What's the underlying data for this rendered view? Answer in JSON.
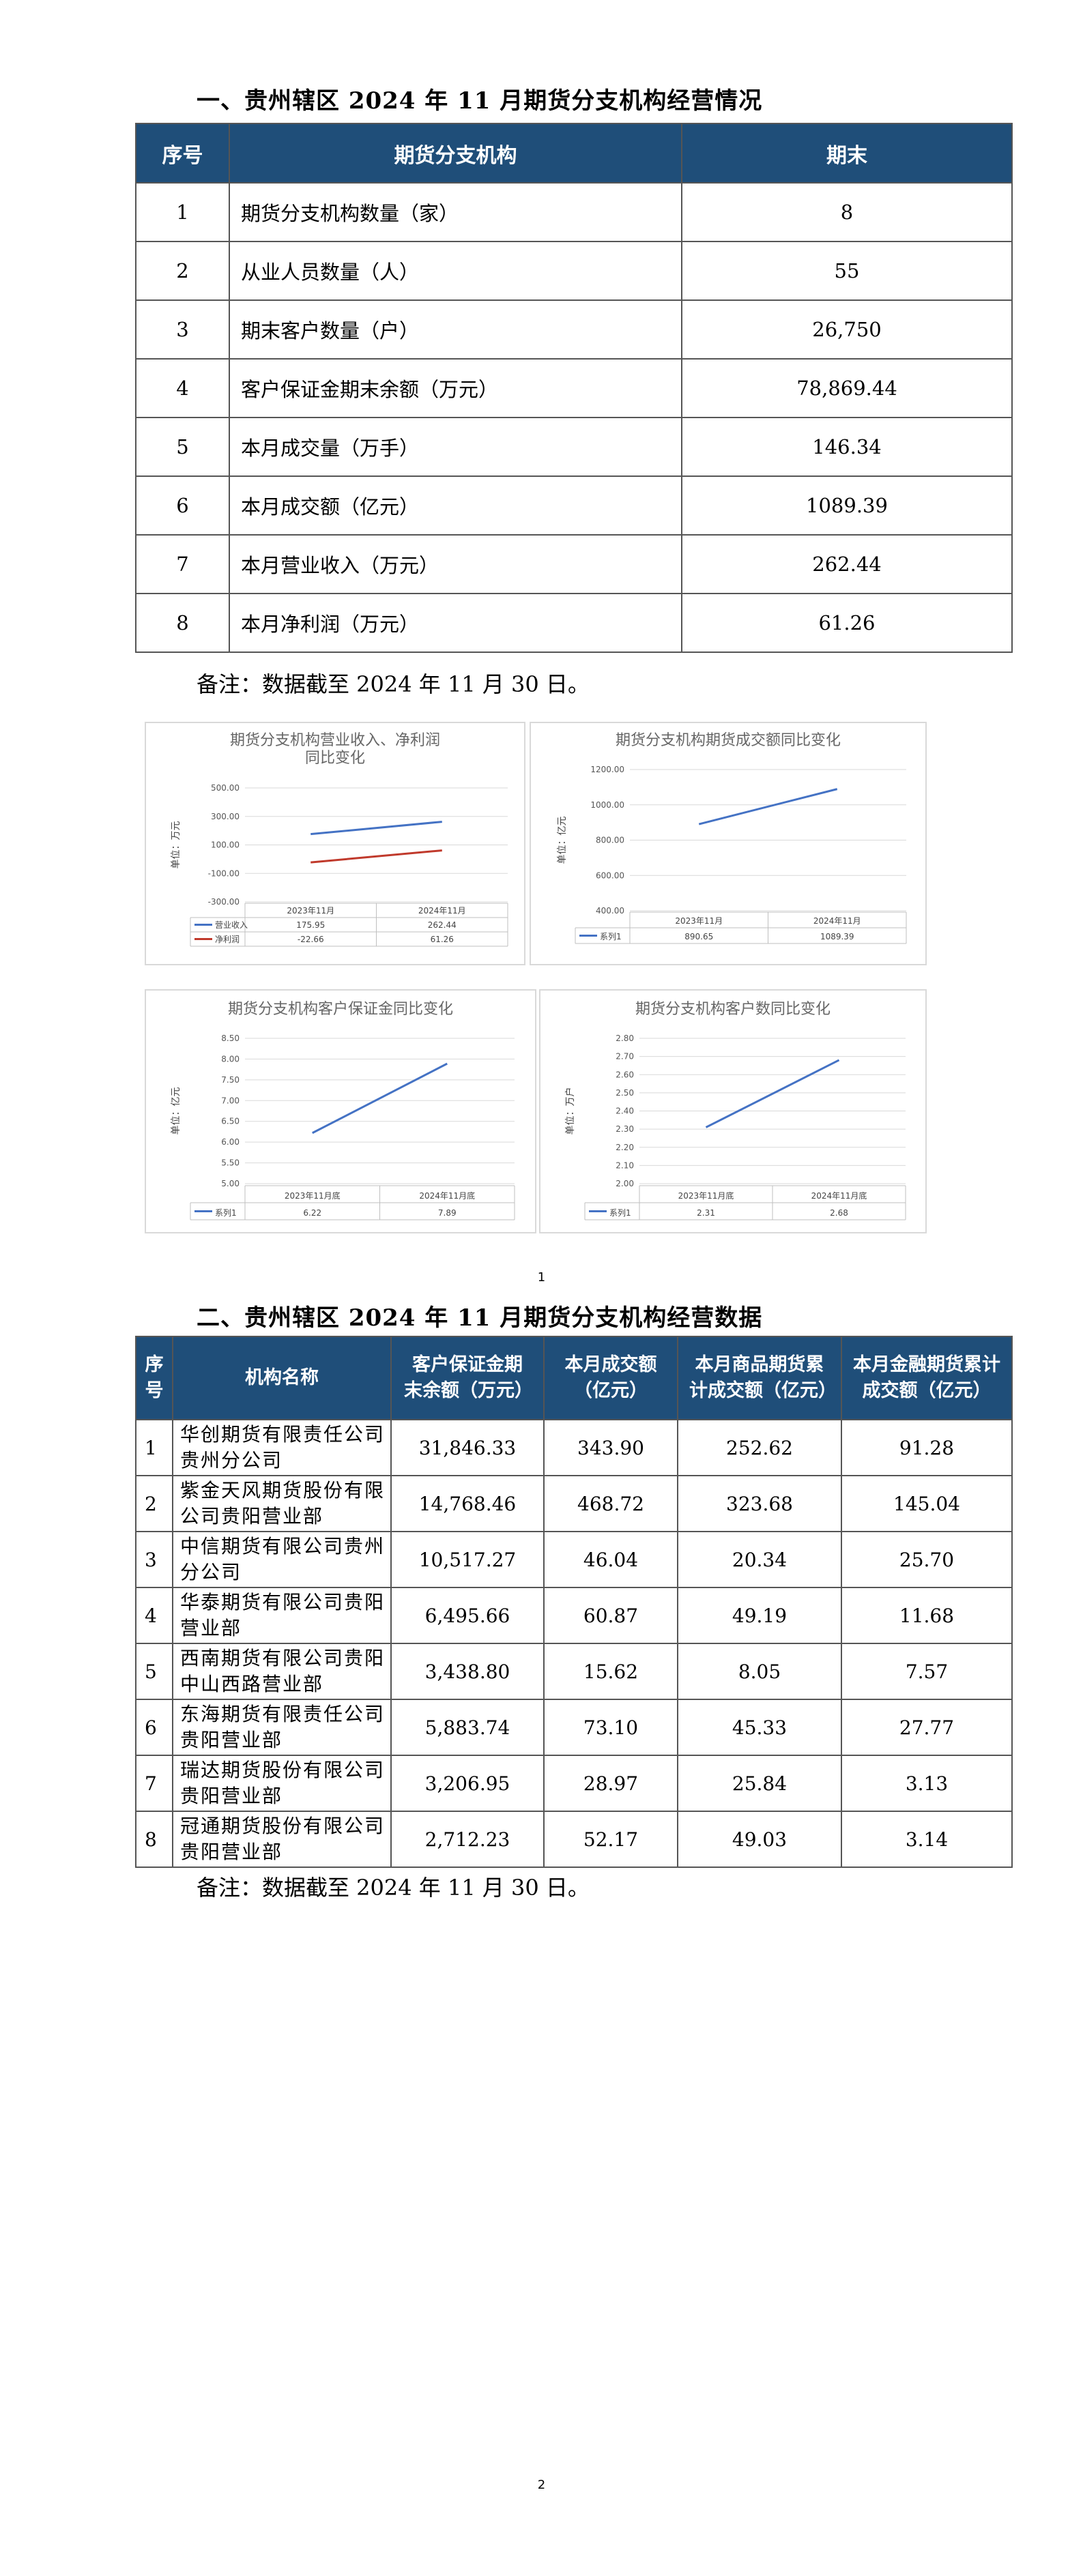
{
  "section1": {
    "title": "一、贵州辖区 2024 年 11 月期货分支机构经营情况",
    "headers": [
      "序号",
      "期货分支机构",
      "期末"
    ],
    "rows": [
      {
        "no": "1",
        "name": "期货分支机构数量（家）",
        "value": "8"
      },
      {
        "no": "2",
        "name": "从业人员数量（人）",
        "value": "55"
      },
      {
        "no": "3",
        "name": "期末客户数量（户）",
        "value": "26,750"
      },
      {
        "no": "4",
        "name": "客户保证金期末余额（万元）",
        "value": "78,869.44"
      },
      {
        "no": "5",
        "name": "本月成交量（万手）",
        "value": "146.34"
      },
      {
        "no": "6",
        "name": "本月成交额（亿元）",
        "value": "1089.39"
      },
      {
        "no": "7",
        "name": "本月营业收入（万元）",
        "value": "262.44"
      },
      {
        "no": "8",
        "name": "本月净利润（万元）",
        "value": "61.26"
      }
    ],
    "note": "备注：数据截至 2024 年 11 月 30 日。"
  },
  "chart_data": [
    {
      "type": "line",
      "title": "期货分支机构营业收入、净利润同比变化",
      "title_lines": [
        "期货分支机构营业收入、净利润",
        "同比变化"
      ],
      "ylabel": "单位：万元",
      "categories": [
        "2023年11月",
        "2024年11月"
      ],
      "ylim": [
        -300,
        500
      ],
      "yticks": [
        "500.00",
        "300.00",
        "100.00",
        "-100.00",
        "-300.00"
      ],
      "series": [
        {
          "name": "营业收入",
          "values": [
            175.95,
            262.44
          ],
          "labels": [
            "175.95",
            "262.44"
          ],
          "color": "#4472c4"
        },
        {
          "name": "净利润",
          "values": [
            -22.66,
            61.26
          ],
          "labels": [
            "-22.66",
            "61.26"
          ],
          "color": "#c0392b"
        }
      ],
      "grid": true,
      "legend": "data-table"
    },
    {
      "type": "line",
      "title": "期货分支机构期货成交额同比变化",
      "ylabel": "单位：亿元",
      "categories": [
        "2023年11月",
        "2024年11月"
      ],
      "ylim": [
        400,
        1200
      ],
      "yticks": [
        "1200.00",
        "1000.00",
        "800.00",
        "600.00",
        "400.00"
      ],
      "series": [
        {
          "name": "系列1",
          "values": [
            890.65,
            1089.39
          ],
          "labels": [
            "890.65",
            "1089.39"
          ],
          "color": "#4472c4"
        }
      ],
      "grid": true,
      "legend": "data-table"
    },
    {
      "type": "line",
      "title": "期货分支机构客户保证金同比变化",
      "ylabel": "单位：亿元",
      "categories": [
        "2023年11月底",
        "2024年11月底"
      ],
      "ylim": [
        5,
        8.5
      ],
      "yticks": [
        "8.50",
        "8.00",
        "7.50",
        "7.00",
        "6.50",
        "6.00",
        "5.50",
        "5.00"
      ],
      "series": [
        {
          "name": "系列1",
          "values": [
            6.22,
            7.89
          ],
          "labels": [
            "6.22",
            "7.89"
          ],
          "color": "#4472c4"
        }
      ],
      "grid": true,
      "legend": "data-table"
    },
    {
      "type": "line",
      "title": "期货分支机构客户数同比变化",
      "ylabel": "单位：万户",
      "categories": [
        "2023年11月底",
        "2024年11月底"
      ],
      "ylim": [
        2.0,
        2.8
      ],
      "yticks": [
        "2.80",
        "2.70",
        "2.60",
        "2.50",
        "2.40",
        "2.30",
        "2.20",
        "2.10",
        "2.00"
      ],
      "series": [
        {
          "name": "系列1",
          "values": [
            2.31,
            2.68
          ],
          "labels": [
            "2.31",
            "2.68"
          ],
          "color": "#4472c4"
        }
      ],
      "grid": true,
      "legend": "data-table"
    }
  ],
  "page1_number": "1",
  "section2": {
    "title": "二、贵州辖区 2024 年 11 月期货分支机构经营数据",
    "headers": {
      "no": "序号",
      "name": "机构名称",
      "margin": "客户保证金期末余额（万元）",
      "turnover": "本月成交额（亿元）",
      "commodity": "本月商品期货累计成交额（亿元）",
      "financial": "本月金融期货累计成交额（亿元）"
    },
    "rows": [
      {
        "no": "1",
        "name": "华创期货有限责任公司贵州分公司",
        "margin": "31,846.33",
        "turnover": "343.90",
        "commodity": "252.62",
        "financial": "91.28"
      },
      {
        "no": "2",
        "name": "紫金天风期货股份有限公司贵阳营业部",
        "margin": "14,768.46",
        "turnover": "468.72",
        "commodity": "323.68",
        "financial": "145.04"
      },
      {
        "no": "3",
        "name": "中信期货有限公司贵州分公司",
        "margin": "10,517.27",
        "turnover": "46.04",
        "commodity": "20.34",
        "financial": "25.70"
      },
      {
        "no": "4",
        "name": "华泰期货有限公司贵阳营业部",
        "margin": "6,495.66",
        "turnover": "60.87",
        "commodity": "49.19",
        "financial": "11.68"
      },
      {
        "no": "5",
        "name": "西南期货有限公司贵阳中山西路营业部",
        "margin": "3,438.80",
        "turnover": "15.62",
        "commodity": "8.05",
        "financial": "7.57"
      },
      {
        "no": "6",
        "name": "东海期货有限责任公司贵阳营业部",
        "margin": "5,883.74",
        "turnover": "73.10",
        "commodity": "45.33",
        "financial": "27.77"
      },
      {
        "no": "7",
        "name": "瑞达期货股份有限公司贵阳营业部",
        "margin": "3,206.95",
        "turnover": "28.97",
        "commodity": "25.84",
        "financial": "3.13"
      },
      {
        "no": "8",
        "name": "冠通期货股份有限公司贵阳营业部",
        "margin": "2,712.23",
        "turnover": "52.17",
        "commodity": "49.03",
        "financial": "3.14"
      }
    ],
    "note": "备注：数据截至 2024 年 11 月 30 日。"
  },
  "page2_number": "2"
}
